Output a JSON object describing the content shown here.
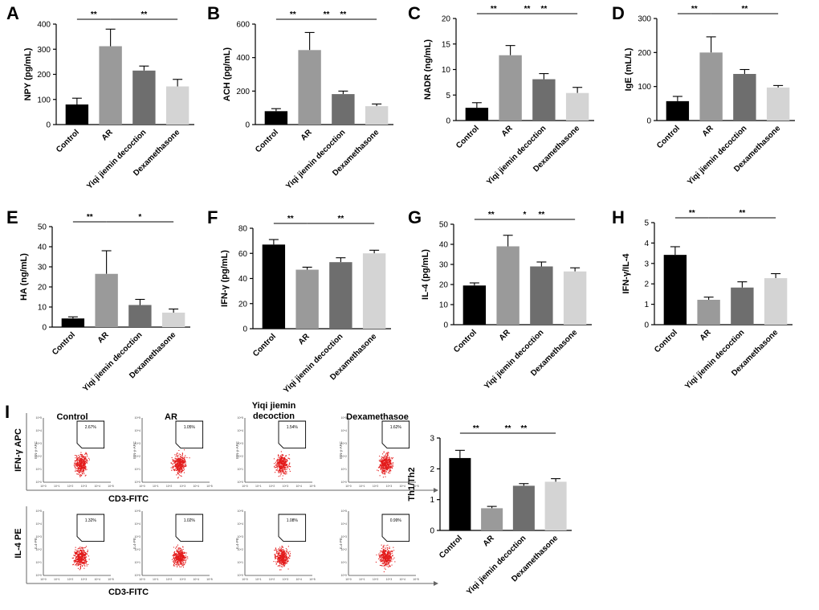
{
  "colors": {
    "control": "#000000",
    "ar": "#9a9a9a",
    "yiqi": "#6e6e6e",
    "dex": "#d4d4d4",
    "scatter": "#e31b1b"
  },
  "chart_data": [
    {
      "panel": "A",
      "type": "bar",
      "ylabel": "NPY (pg/mL)",
      "categories": [
        "Control",
        "AR",
        "Yiqi jiemin decoction",
        "Dexamethasone"
      ],
      "values": [
        80,
        312,
        215,
        152
      ],
      "errors": [
        25,
        68,
        18,
        28
      ],
      "yticks": [
        0,
        100,
        200,
        300,
        400
      ],
      "ylim": [
        0,
        400
      ],
      "significance": [
        {
          "from": 0,
          "to": 1,
          "label": "**"
        },
        {
          "from": 1,
          "to": 3,
          "label": "**"
        }
      ]
    },
    {
      "panel": "B",
      "type": "bar",
      "ylabel": "ACH (pg/mL)",
      "categories": [
        "Control",
        "AR",
        "Yiqi jiemin decoction",
        "Dexamethasone"
      ],
      "values": [
        80,
        445,
        182,
        110
      ],
      "errors": [
        15,
        105,
        18,
        13
      ],
      "yticks": [
        0,
        200,
        400,
        600
      ],
      "ylim": [
        0,
        600
      ],
      "significance": [
        {
          "from": 0,
          "to": 1,
          "label": "**"
        },
        {
          "from": 1,
          "to": 2,
          "label": "**"
        },
        {
          "from": 1,
          "to": 3,
          "label": "**"
        }
      ]
    },
    {
      "panel": "C",
      "type": "bar",
      "ylabel": "NADR (ng/mL)",
      "categories": [
        "Control",
        "AR",
        "Yiqi jiemin decoction",
        "Dexamethasone"
      ],
      "values": [
        2.5,
        12.8,
        8.1,
        5.4
      ],
      "errors": [
        1.0,
        1.9,
        1.1,
        1.1
      ],
      "yticks": [
        0,
        5,
        10,
        15,
        20
      ],
      "ylim": [
        0,
        20
      ],
      "significance": [
        {
          "from": 0,
          "to": 1,
          "label": "**"
        },
        {
          "from": 1,
          "to": 2,
          "label": "**"
        },
        {
          "from": 1,
          "to": 3,
          "label": "**"
        }
      ]
    },
    {
      "panel": "D",
      "type": "bar",
      "ylabel": "IgE (mL/L)",
      "categories": [
        "Control",
        "AR",
        "Yiqi jiemin decoction",
        "Dexamethasone"
      ],
      "values": [
        57,
        200,
        137,
        97
      ],
      "errors": [
        14,
        46,
        13,
        6
      ],
      "yticks": [
        0,
        100,
        200,
        300
      ],
      "ylim": [
        0,
        300
      ],
      "significance": [
        {
          "from": 0,
          "to": 1,
          "label": "**"
        },
        {
          "from": 1,
          "to": 3,
          "label": "**"
        }
      ]
    },
    {
      "panel": "E",
      "type": "bar",
      "ylabel": "HA (ng/mL)",
      "categories": [
        "Control",
        "AR",
        "Yiqi jiemin decoction",
        "Dexamethasone"
      ],
      "values": [
        4.3,
        26.5,
        11.0,
        7.2
      ],
      "errors": [
        0.8,
        11.5,
        2.8,
        1.8
      ],
      "yticks": [
        0,
        10,
        20,
        30,
        40,
        50
      ],
      "ylim": [
        0,
        50
      ],
      "significance": [
        {
          "from": 0,
          "to": 1,
          "label": "**"
        },
        {
          "from": 1,
          "to": 3,
          "label": "*"
        }
      ]
    },
    {
      "panel": "F",
      "type": "bar",
      "ylabel": "IFN-γ (pg/mL)",
      "categories": [
        "Control",
        "AR",
        "Yiqi jiemin decoction",
        "Dexamethasone"
      ],
      "values": [
        67,
        47,
        53,
        60
      ],
      "errors": [
        4,
        2,
        3.5,
        2.5
      ],
      "yticks": [
        0,
        20,
        40,
        60,
        80
      ],
      "ylim": [
        0,
        80
      ],
      "significance": [
        {
          "from": 0,
          "to": 1,
          "label": "**"
        },
        {
          "from": 1,
          "to": 3,
          "label": "**"
        }
      ]
    },
    {
      "panel": "G",
      "type": "bar",
      "ylabel": "IL-4 (pg/mL)",
      "categories": [
        "Control",
        "AR",
        "Yiqi jiemin decoction",
        "Dexamethasone"
      ],
      "values": [
        19.5,
        39,
        29,
        26.5
      ],
      "errors": [
        1.3,
        5.5,
        2.2,
        1.8
      ],
      "yticks": [
        0,
        10,
        20,
        30,
        40,
        50
      ],
      "ylim": [
        0,
        50
      ],
      "significance": [
        {
          "from": 0,
          "to": 1,
          "label": "**"
        },
        {
          "from": 1,
          "to": 2,
          "label": "*"
        },
        {
          "from": 1,
          "to": 3,
          "label": "**"
        }
      ]
    },
    {
      "panel": "H",
      "type": "bar",
      "ylabel": "IFN-γ/IL-4",
      "categories": [
        "Control",
        "AR",
        "Yiqi jiemin decoction",
        "Dexamethasone"
      ],
      "values": [
        3.42,
        1.22,
        1.82,
        2.28
      ],
      "errors": [
        0.4,
        0.13,
        0.28,
        0.22
      ],
      "yticks": [
        0,
        1,
        2,
        3,
        4,
        5
      ],
      "ylim": [
        0,
        5
      ],
      "significance": [
        {
          "from": 0,
          "to": 1,
          "label": "**"
        },
        {
          "from": 1,
          "to": 3,
          "label": "**"
        }
      ]
    },
    {
      "panel": "I",
      "type": "bar",
      "ylabel": "Th1/Th2",
      "categories": [
        "Control",
        "AR",
        "Yiqi jiemin decoction",
        "Dexamethasone"
      ],
      "values": [
        2.35,
        0.72,
        1.45,
        1.58
      ],
      "errors": [
        0.25,
        0.06,
        0.07,
        0.1
      ],
      "yticks": [
        0,
        1,
        2,
        3
      ],
      "ylim": [
        0,
        3
      ],
      "significance": [
        {
          "from": 0,
          "to": 1,
          "label": "**"
        },
        {
          "from": 1,
          "to": 2,
          "label": "**"
        },
        {
          "from": 1,
          "to": 3,
          "label": "**"
        }
      ]
    }
  ],
  "flow_panel": {
    "letter": "I",
    "column_titles": [
      "Control",
      "AR",
      "Yiqi jiemin\ndecoction",
      "Dexamethasoe"
    ],
    "row1": {
      "ylabel": "IFN-γ APC",
      "small_ylabel": "IFN-γ-APC",
      "xlabel": "CD3-FITC",
      "percents": [
        "2.67%",
        "1.05%",
        "1.54%",
        "1.62%"
      ]
    },
    "row2": {
      "ylabel": "IL-4 PE",
      "small_ylabel": "IL4-PE",
      "xlabel": "CD3-FITC",
      "percents": [
        "1.32%",
        "1.02%",
        "1.08%",
        "0.99%"
      ]
    },
    "tick_labels": [
      "10^0",
      "10^1",
      "10^2",
      "10^3",
      "10^4",
      "10^5"
    ]
  }
}
